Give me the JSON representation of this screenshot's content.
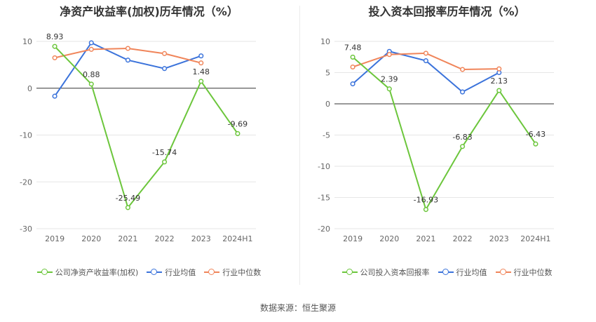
{
  "source_text": "数据来源：恒生聚源",
  "colors": {
    "company": "#6cc63c",
    "industry_avg": "#3b73db",
    "industry_median": "#f0855a",
    "grid": "#e6e6e6",
    "axis_zero": "#333333",
    "tick_text": "#666666"
  },
  "charts": [
    {
      "title": "净资产收益率(加权)历年情况（%）",
      "legend": [
        {
          "key": "company",
          "label": "公司净资产收益率(加权)"
        },
        {
          "key": "industry_avg",
          "label": "行业均值"
        },
        {
          "key": "industry_median",
          "label": "行业中位数"
        }
      ]
    },
    {
      "title": "投入资本回报率历年情况（%）",
      "legend": [
        {
          "key": "company",
          "label": "公司投入资本回报率"
        },
        {
          "key": "industry_avg",
          "label": "行业均值"
        },
        {
          "key": "industry_median",
          "label": "行业中位数"
        }
      ]
    }
  ],
  "chart_data": [
    {
      "type": "line",
      "title": "净资产收益率(加权)历年情况（%）",
      "categories": [
        "2019",
        "2020",
        "2021",
        "2022",
        "2023",
        "2024H1"
      ],
      "ylim": [
        -30,
        10
      ],
      "yticks": [
        10,
        0,
        -10,
        -20,
        -30
      ],
      "grid": true,
      "legend_position": "bottom",
      "series": [
        {
          "name": "公司净资产收益率(加权)",
          "key": "company",
          "values": [
            8.93,
            0.88,
            -25.49,
            -15.74,
            1.48,
            -9.69
          ],
          "labels": true
        },
        {
          "name": "行业均值",
          "key": "industry_avg",
          "values": [
            -1.7,
            9.7,
            6.0,
            4.2,
            6.9,
            null
          ],
          "labels": false
        },
        {
          "name": "行业中位数",
          "key": "industry_median",
          "values": [
            6.5,
            8.3,
            8.5,
            7.4,
            5.4,
            null
          ],
          "labels": false
        }
      ]
    },
    {
      "type": "line",
      "title": "投入资本回报率历年情况（%）",
      "categories": [
        "2019",
        "2020",
        "2021",
        "2022",
        "2023",
        "2024H1"
      ],
      "ylim": [
        -20,
        10
      ],
      "yticks": [
        10,
        5,
        0,
        -5,
        -10,
        -15,
        -20
      ],
      "grid": true,
      "legend_position": "bottom",
      "series": [
        {
          "name": "公司投入资本回报率",
          "key": "company",
          "values": [
            7.48,
            2.39,
            -16.93,
            -6.83,
            2.13,
            -6.43
          ],
          "labels": true
        },
        {
          "name": "行业均值",
          "key": "industry_avg",
          "values": [
            3.2,
            8.4,
            6.9,
            1.9,
            5.0,
            null
          ],
          "labels": false
        },
        {
          "name": "行业中位数",
          "key": "industry_median",
          "values": [
            5.9,
            7.9,
            8.1,
            5.5,
            5.6,
            null
          ],
          "labels": false
        }
      ]
    }
  ]
}
